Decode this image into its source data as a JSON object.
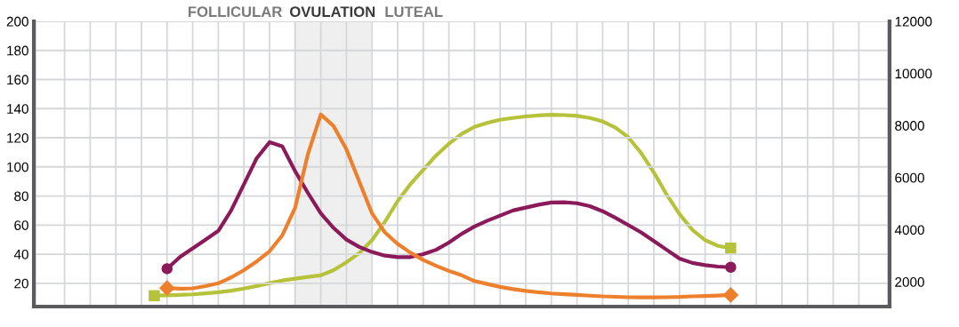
{
  "chart_data": {
    "type": "line",
    "categories": [
      null,
      null,
      null,
      null,
      null,
      null,
      null,
      null,
      null,
      null,
      null,
      null,
      null,
      null,
      null,
      null,
      null,
      null,
      null,
      null,
      null,
      null,
      null,
      null,
      null,
      null,
      null,
      null,
      null,
      null,
      null,
      null,
      null,
      null,
      null,
      null,
      null,
      null,
      null,
      null,
      null,
      null,
      null,
      null,
      null,
      null,
      null,
      null,
      null,
      null,
      null,
      null,
      null,
      null,
      null,
      null,
      null,
      null,
      null,
      null,
      null,
      null,
      null,
      null,
      null,
      null,
      null
    ],
    "ylim": [
      4,
      200
    ],
    "yticks": [
      20,
      40,
      60,
      80,
      100,
      120,
      140,
      160,
      180,
      200
    ],
    "y2lim": [
      1050,
      12000
    ],
    "y2ticks": [
      2000,
      4000,
      6000,
      8000,
      10000,
      12000
    ],
    "tick_labels": "y",
    "grid": true,
    "line_style": "solid",
    "annotations": [
      "FOLLICULAR",
      "OVULATION",
      "LUTEAL"
    ],
    "series": [
      {
        "color": "#8b1a5a",
        "values": [
          null,
          null,
          null,
          null,
          null,
          null,
          null,
          null,
          null,
          null,
          30,
          38,
          44,
          50,
          56,
          70,
          88,
          106,
          117,
          114,
          97,
          82,
          68,
          58,
          50,
          45,
          41.5,
          39,
          38,
          38,
          40,
          43,
          48,
          54,
          59,
          63,
          66.5,
          70,
          72,
          74,
          75.5,
          75.7,
          75,
          73,
          69.5,
          65,
          60,
          55,
          49,
          43,
          37,
          34,
          32.5,
          31.5,
          31,
          null,
          null,
          null,
          null,
          null,
          null,
          null,
          null,
          null,
          null,
          null,
          null
        ]
      },
      {
        "color": "#ee7f2d",
        "values": [
          null,
          null,
          null,
          null,
          null,
          null,
          null,
          null,
          null,
          null,
          16.7,
          16.3,
          16.5,
          18,
          20,
          24,
          29,
          35,
          42,
          53,
          72,
          109,
          136,
          128,
          112,
          90,
          68,
          55,
          47,
          41,
          36,
          32,
          28.5,
          25.5,
          21.5,
          19.5,
          17.5,
          16,
          14.8,
          13.8,
          13,
          12.5,
          12,
          11.5,
          11,
          10.7,
          10.4,
          10.3,
          10.3,
          10.4,
          10.6,
          11,
          11.3,
          11.6,
          12,
          null,
          null,
          null,
          null,
          null,
          null,
          null,
          null,
          null,
          null,
          null,
          null
        ]
      },
      {
        "color": "#b5c23a",
        "axis": "y2",
        "values": [
          null,
          null,
          null,
          null,
          null,
          null,
          null,
          null,
          null,
          1470,
          1480,
          1500,
          1520,
          1560,
          1600,
          1660,
          1740,
          1840,
          1950,
          2050,
          2120,
          2190,
          2250,
          2450,
          2750,
          3100,
          3600,
          4300,
          5100,
          5750,
          6300,
          6850,
          7300,
          7680,
          7950,
          8100,
          8220,
          8290,
          8350,
          8390,
          8413,
          8400,
          8370,
          8290,
          8160,
          7920,
          7550,
          6950,
          6200,
          5350,
          4600,
          4000,
          3600,
          3380,
          3293,
          null,
          null,
          null,
          null,
          null,
          null,
          null,
          null,
          null,
          null,
          null,
          null
        ]
      }
    ]
  }
}
